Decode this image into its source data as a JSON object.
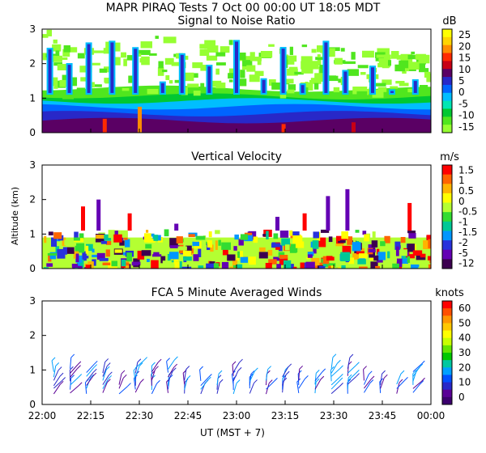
{
  "figure": {
    "title": "MAPR PIRAQ Tests   7 Oct 00   00:00 UT   18:05   MDT",
    "xlabel": "UT   (MST + 7)"
  },
  "chart_data": [
    {
      "type": "heatmap",
      "title": "Signal to Noise Ratio",
      "unit": "dB",
      "xlim": [
        "22:00",
        "00:00"
      ],
      "x_ticks": [
        "22:00",
        "22:15",
        "22:30",
        "22:45",
        "23:00",
        "23:15",
        "23:30",
        "23:45",
        "00:00"
      ],
      "ylim": [
        0,
        3
      ],
      "y_ticks": [
        "0",
        "1",
        "2",
        "3"
      ],
      "colorbar": {
        "labels": [
          "25",
          "20",
          "15",
          "10",
          "5",
          "0",
          "-5",
          "-10",
          "-15"
        ],
        "colors": [
          "#ffff00",
          "#ffd400",
          "#ff8c00",
          "#ff2a00",
          "#c80014",
          "#5a0064",
          "#2828c8",
          "#0064ff",
          "#00beff",
          "#00e6b4",
          "#00c832",
          "#50e61e",
          "#96ff32"
        ]
      }
    },
    {
      "type": "heatmap",
      "title": "Vertical Velocity",
      "unit": "m/s",
      "xlim": [
        "22:00",
        "00:00"
      ],
      "ylim": [
        0,
        3
      ],
      "y_ticks": [
        "0",
        "1",
        "2",
        "3"
      ],
      "ylabel": "Altitude (km)",
      "colorbar": {
        "labels": [
          "1.5",
          "1",
          "0.5",
          "0",
          "-0.5",
          "-1",
          "-1.5",
          "-2",
          "-5",
          "-12"
        ],
        "colors": [
          "#ff0000",
          "#ff6400",
          "#ffb400",
          "#ffff00",
          "#b4ff32",
          "#32dc32",
          "#00c896",
          "#0096ff",
          "#2832dc",
          "#6400b4",
          "#3c0050"
        ]
      }
    },
    {
      "type": "barbs",
      "title": "FCA 5 Minute Averaged Winds",
      "unit": "knots",
      "xlim": [
        "22:00",
        "00:00"
      ],
      "ylim": [
        0,
        3
      ],
      "y_ticks": [
        "0",
        "1",
        "2",
        "3"
      ],
      "colorbar": {
        "labels": [
          "60",
          "50",
          "40",
          "30",
          "20",
          "10",
          "0"
        ],
        "colors": [
          "#ff0000",
          "#ff5000",
          "#ff9600",
          "#ffc800",
          "#ffff00",
          "#c8ff00",
          "#64e600",
          "#00c800",
          "#00c8a0",
          "#00a0ff",
          "#0050ff",
          "#2828c8",
          "#5a0096",
          "#3c006e"
        ]
      }
    }
  ]
}
